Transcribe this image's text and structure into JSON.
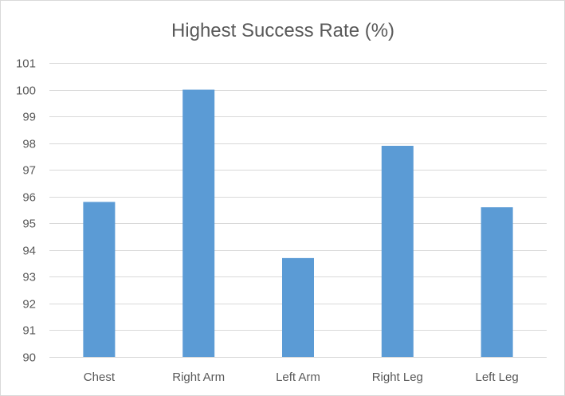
{
  "chart_data": {
    "type": "bar",
    "title": "Highest Success Rate (%)",
    "xlabel": "",
    "ylabel": "",
    "categories": [
      "Chest",
      "Right Arm",
      "Left Arm",
      "Right Leg",
      "Left Leg"
    ],
    "values": [
      95.8,
      100,
      93.7,
      97.9,
      95.6
    ],
    "ylim": [
      90,
      101
    ],
    "yticks": [
      "90",
      "91",
      "92",
      "93",
      "94",
      "95",
      "96",
      "97",
      "98",
      "99",
      "100",
      "101"
    ],
    "grid": true,
    "legend": "none",
    "bar_color": "#5b9bd5",
    "grid_color": "#d9d9d9",
    "text_color": "#595959"
  }
}
